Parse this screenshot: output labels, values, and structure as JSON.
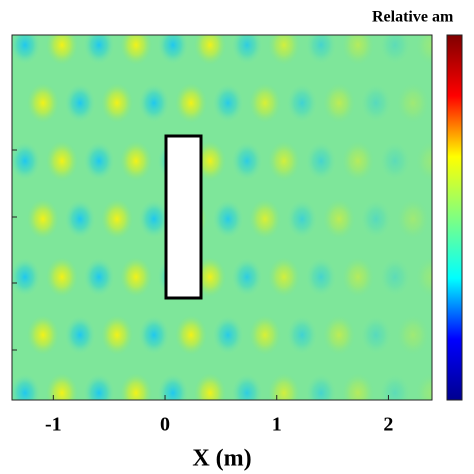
{
  "chart_data": {
    "type": "heatmap",
    "colorbar_title": "Relative am",
    "xlabel": "X (m)",
    "xlim": [
      -1.37,
      2.39
    ],
    "xticks": [
      -1,
      0,
      1,
      2
    ],
    "colormap": [
      "#00008f",
      "#0000ff",
      "#00ffff",
      "#80ff80",
      "#ffff00",
      "#ff0000",
      "#800000"
    ]
  }
}
